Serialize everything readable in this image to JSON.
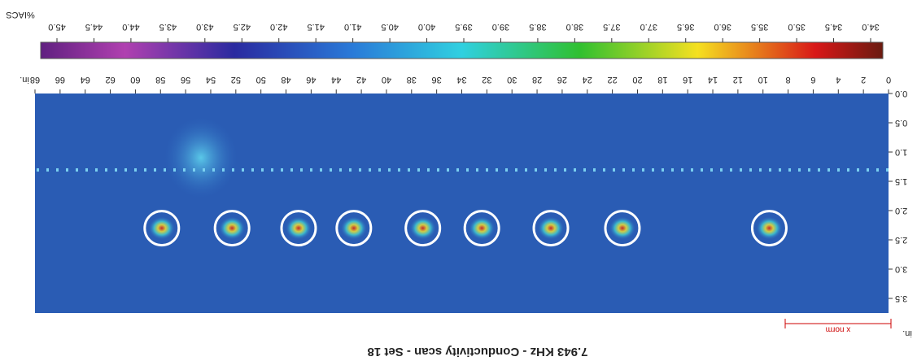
{
  "chart_data": {
    "type": "heatmap",
    "title": "7.943 KHz - Conductivity scan - Set 18",
    "xlabel": "in.",
    "ylabel": "in.",
    "xlim": [
      0,
      68
    ],
    "xticks": [
      0,
      2,
      4,
      6,
      8,
      10,
      12,
      14,
      16,
      18,
      20,
      22,
      24,
      26,
      28,
      30,
      32,
      34,
      36,
      38,
      40,
      42,
      44,
      46,
      48,
      50,
      52,
      54,
      56,
      58,
      60,
      62,
      64,
      66,
      68
    ],
    "ylim": [
      0,
      3.75
    ],
    "yticks": [
      {
        "value": 0,
        "label": "0.0"
      },
      {
        "value": 0.5,
        "label": "0.5"
      },
      {
        "value": 1,
        "label": "1.0"
      },
      {
        "value": 1.5,
        "label": "1.5"
      },
      {
        "value": 2,
        "label": "2.0"
      },
      {
        "value": 2.5,
        "label": "2.5"
      },
      {
        "value": 3,
        "label": "3.0"
      },
      {
        "value": 3.5,
        "label": "3.5"
      }
    ],
    "colorbar_label": "%IACS",
    "clim": [
      34,
      45
    ],
    "cticks": [
      {
        "value": 34,
        "label": "34.0"
      },
      {
        "value": 34.5,
        "label": "34.5"
      },
      {
        "value": 35,
        "label": "35.0"
      },
      {
        "value": 35.5,
        "label": "35.5"
      },
      {
        "value": 36,
        "label": "36.0"
      },
      {
        "value": 36.5,
        "label": "36.5"
      },
      {
        "value": 37,
        "label": "37.0"
      },
      {
        "value": 37.5,
        "label": "37.5"
      },
      {
        "value": 38,
        "label": "38.0"
      },
      {
        "value": 38.5,
        "label": "38.5"
      },
      {
        "value": 39,
        "label": "39.0"
      },
      {
        "value": 39.5,
        "label": "39.5"
      },
      {
        "value": 40,
        "label": "40.0"
      },
      {
        "value": 40.5,
        "label": "40.5"
      },
      {
        "value": 41,
        "label": "41.0"
      },
      {
        "value": 41.5,
        "label": "41.5"
      },
      {
        "value": 42,
        "label": "42.0"
      },
      {
        "value": 42.5,
        "label": "42.5"
      },
      {
        "value": 43,
        "label": "43.0"
      },
      {
        "value": 43.5,
        "label": "43.5"
      },
      {
        "value": 44,
        "label": "44.0"
      },
      {
        "value": 44.5,
        "label": "44.5"
      },
      {
        "value": 45,
        "label": "45.0"
      }
    ],
    "annotation": "x norm",
    "defects": {
      "x": [
        9.5,
        21.2,
        26.9,
        32.4,
        37.1,
        42.6,
        47,
        52.3,
        57.9
      ],
      "y": [
        2.3,
        2.3,
        2.3,
        2.3,
        2.3,
        2.3,
        2.3,
        2.3,
        2.3
      ]
    }
  }
}
